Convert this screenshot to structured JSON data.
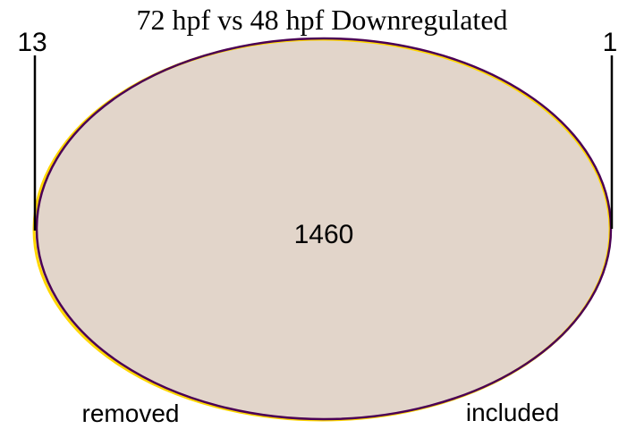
{
  "title": "72 hpf vs 48 hpf Downregulated",
  "diagram": {
    "type": "venn",
    "sets": [
      {
        "name": "removed",
        "only_count": "13",
        "stroke_color": "#ffd700"
      },
      {
        "name": "included",
        "only_count": "1",
        "stroke_color": "#4b0055"
      }
    ],
    "intersection_count": "1460",
    "fill_color": "#e2d5ca"
  }
}
